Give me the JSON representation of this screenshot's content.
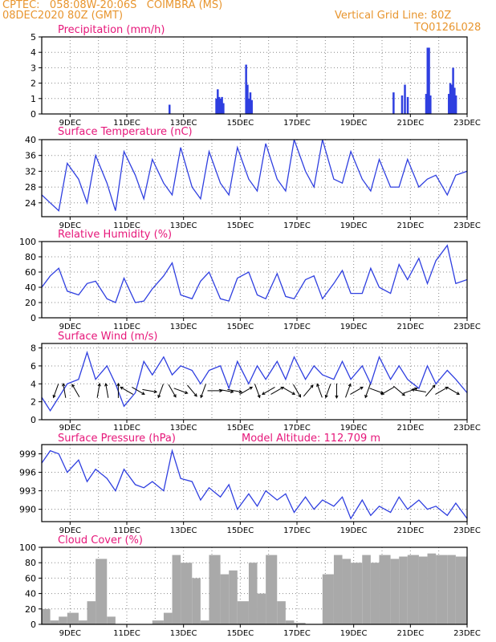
{
  "header": {
    "line1_left": "CPTEC:   058:08W-20:06S   COIMBRA (MS)",
    "line2_left": "08DEC2020 80Z (GMT)",
    "line2_right": "Vertical Grid Line: 80Z",
    "line3_right": "TQ0126L028"
  },
  "colors": {
    "header": "#e8952e",
    "panel_title": "#e6177a",
    "series_line": "#2f3fe0",
    "cloud_fill": "#a9a9a9"
  },
  "x_axis": {
    "ticks": [
      "9DEC",
      "11DEC",
      "13DEC",
      "15DEC",
      "17DEC",
      "19DEC",
      "21DEC",
      "23DEC"
    ],
    "range_days": [
      8.0,
      23.0
    ]
  },
  "chart_data": [
    {
      "type": "bar",
      "title": "Precipitation (mm/h)",
      "ylim": [
        0,
        5
      ],
      "yticks": [
        0,
        1,
        2,
        3,
        4,
        5
      ],
      "x": [
        12.5,
        14.15,
        14.2,
        14.25,
        14.3,
        14.35,
        14.4,
        15.2,
        15.25,
        15.3,
        15.35,
        15.4,
        20.4,
        20.7,
        20.8,
        20.9,
        21.55,
        21.6,
        21.65,
        21.7,
        22.35,
        22.4,
        22.45,
        22.5,
        22.55,
        22.6
      ],
      "values": [
        0.6,
        1.0,
        1.6,
        1.1,
        1.0,
        1.1,
        0.7,
        3.2,
        1.9,
        1.0,
        1.4,
        0.9,
        1.4,
        1.2,
        1.9,
        1.1,
        1.3,
        4.3,
        4.3,
        1.2,
        1.3,
        2.0,
        1.9,
        3.0,
        1.7,
        1.2
      ]
    },
    {
      "type": "line",
      "title": "Surface Temperature (nC)",
      "ylim": [
        20.5,
        40
      ],
      "yticks": [
        24,
        28,
        32,
        36,
        40
      ],
      "x": [
        8.0,
        8.3,
        8.6,
        8.9,
        9.3,
        9.6,
        9.9,
        10.3,
        10.6,
        10.9,
        11.3,
        11.6,
        11.9,
        12.3,
        12.6,
        12.9,
        13.3,
        13.6,
        13.9,
        14.3,
        14.6,
        14.9,
        15.3,
        15.6,
        15.9,
        16.3,
        16.6,
        16.9,
        17.3,
        17.6,
        17.9,
        18.3,
        18.6,
        18.9,
        19.3,
        19.6,
        19.9,
        20.3,
        20.6,
        20.9,
        21.3,
        21.6,
        21.9,
        22.3,
        22.6,
        23.0
      ],
      "values": [
        26,
        24,
        22,
        34,
        30,
        24,
        36,
        29,
        22,
        37,
        31,
        25,
        35,
        29,
        26,
        38,
        28,
        25,
        37,
        29,
        26,
        38,
        30,
        27,
        39,
        30,
        27,
        40,
        32,
        28,
        40,
        30,
        29,
        37,
        30,
        27,
        35,
        28,
        28,
        35,
        28,
        30,
        31,
        26,
        31,
        32
      ]
    },
    {
      "type": "line",
      "title": "Relative Humidity (%)",
      "ylim": [
        0,
        100
      ],
      "yticks": [
        0,
        20,
        40,
        60,
        80,
        100
      ],
      "x": [
        8.0,
        8.3,
        8.6,
        8.9,
        9.3,
        9.6,
        9.9,
        10.3,
        10.6,
        10.9,
        11.3,
        11.6,
        11.9,
        12.3,
        12.6,
        12.9,
        13.3,
        13.6,
        13.9,
        14.3,
        14.6,
        14.9,
        15.3,
        15.6,
        15.9,
        16.3,
        16.6,
        16.9,
        17.3,
        17.6,
        17.9,
        18.3,
        18.6,
        18.9,
        19.3,
        19.6,
        19.9,
        20.3,
        20.6,
        20.9,
        21.3,
        21.6,
        21.9,
        22.3,
        22.6,
        23.0
      ],
      "values": [
        40,
        55,
        65,
        35,
        30,
        45,
        48,
        25,
        20,
        52,
        20,
        22,
        38,
        55,
        72,
        30,
        25,
        48,
        60,
        25,
        22,
        52,
        60,
        30,
        25,
        58,
        28,
        25,
        50,
        55,
        25,
        45,
        62,
        32,
        32,
        65,
        40,
        32,
        70,
        50,
        78,
        45,
        75,
        95,
        45,
        50
      ]
    },
    {
      "type": "line",
      "title": "Surface Wind (m/s)",
      "ylim": [
        0,
        8.5
      ],
      "yticks": [
        0,
        2,
        4,
        6,
        8
      ],
      "x": [
        8.0,
        8.3,
        8.6,
        8.9,
        9.3,
        9.6,
        9.9,
        10.3,
        10.6,
        10.9,
        11.3,
        11.6,
        11.9,
        12.3,
        12.6,
        12.9,
        13.3,
        13.6,
        13.9,
        14.3,
        14.6,
        14.9,
        15.3,
        15.6,
        15.9,
        16.3,
        16.6,
        16.9,
        17.3,
        17.6,
        17.9,
        18.3,
        18.6,
        18.9,
        19.3,
        19.6,
        19.9,
        20.3,
        20.6,
        20.9,
        21.3,
        21.6,
        21.9,
        22.3,
        22.6,
        23.0
      ],
      "values": [
        2.5,
        1.0,
        2.5,
        4.0,
        4.5,
        7.5,
        4.5,
        6.0,
        4.0,
        1.5,
        3.0,
        6.5,
        5.0,
        7.0,
        5.0,
        6.0,
        5.5,
        4.0,
        5.5,
        6.0,
        3.5,
        6.5,
        4.0,
        6.0,
        4.5,
        6.5,
        4.5,
        7.0,
        4.5,
        6.0,
        5.0,
        4.5,
        6.5,
        4.5,
        6.0,
        4.0,
        7.0,
        4.5,
        6.0,
        4.5,
        3.5,
        6.0,
        4.0,
        5.5,
        4.5,
        3.0
      ],
      "vectors_dir_deg": [
        200,
        350,
        330,
        10,
        350,
        0,
        300,
        120,
        100,
        200,
        150,
        110,
        140,
        200,
        90,
        100,
        100,
        60,
        160,
        240,
        60,
        120,
        150,
        40,
        340,
        200,
        180,
        20,
        60,
        200,
        110,
        240,
        130,
        70,
        280,
        40,
        60,
        120
      ],
      "vectors_x": [
        8.5,
        8.8,
        9.2,
        10.0,
        10.3,
        10.7,
        11.0,
        11.4,
        11.8,
        12.2,
        12.6,
        12.9,
        13.3,
        13.7,
        14.1,
        14.5,
        14.8,
        15.2,
        15.6,
        16.0,
        16.3,
        16.7,
        17.0,
        17.4,
        17.8,
        18.1,
        18.4,
        18.8,
        19.1,
        19.5,
        19.8,
        20.2,
        20.6,
        21.0,
        21.3,
        21.7,
        22.1,
        22.5
      ]
    },
    {
      "type": "line",
      "title": "Surface Pressure (hPa)",
      "annotation": "Model Altitude: 112.709 m",
      "ylim": [
        988,
        1000.5
      ],
      "yticks": [
        990,
        993,
        996,
        999
      ],
      "x": [
        8.0,
        8.3,
        8.6,
        8.9,
        9.3,
        9.6,
        9.9,
        10.3,
        10.6,
        10.9,
        11.3,
        11.6,
        11.9,
        12.3,
        12.6,
        12.9,
        13.3,
        13.6,
        13.9,
        14.3,
        14.6,
        14.9,
        15.3,
        15.6,
        15.9,
        16.3,
        16.6,
        16.9,
        17.3,
        17.6,
        17.9,
        18.3,
        18.6,
        18.9,
        19.3,
        19.6,
        19.9,
        20.3,
        20.6,
        20.9,
        21.3,
        21.6,
        21.9,
        22.3,
        22.6,
        23.0
      ],
      "values": [
        997.5,
        999.5,
        999.0,
        996.0,
        998.0,
        994.5,
        996.5,
        995.0,
        993.0,
        996.5,
        994.0,
        993.5,
        994.5,
        993.0,
        999.5,
        995.0,
        994.5,
        991.5,
        993.5,
        992.0,
        994.0,
        990.0,
        992.5,
        990.5,
        993.0,
        991.5,
        992.5,
        989.5,
        992.0,
        990.0,
        991.5,
        990.5,
        992.0,
        988.5,
        991.5,
        989.0,
        990.5,
        989.5,
        992.0,
        990.0,
        991.5,
        990.0,
        990.5,
        989.0,
        991.0,
        988.5
      ]
    },
    {
      "type": "area",
      "title": "Cloud Cover (%)",
      "ylim": [
        0,
        100
      ],
      "yticks": [
        0,
        20,
        40,
        60,
        80,
        100
      ],
      "x": [
        8.0,
        8.3,
        8.6,
        8.9,
        9.3,
        9.6,
        9.9,
        10.3,
        10.6,
        10.9,
        11.3,
        11.6,
        11.9,
        12.3,
        12.6,
        12.9,
        13.3,
        13.6,
        13.9,
        14.3,
        14.6,
        14.9,
        15.3,
        15.6,
        15.9,
        16.3,
        16.6,
        16.9,
        17.3,
        17.6,
        17.9,
        18.3,
        18.6,
        18.9,
        19.3,
        19.6,
        19.9,
        20.3,
        20.6,
        20.9,
        21.3,
        21.6,
        21.9,
        22.3,
        22.6,
        23.0
      ],
      "values": [
        20,
        5,
        10,
        15,
        5,
        30,
        85,
        10,
        0,
        0,
        0,
        0,
        5,
        15,
        90,
        80,
        60,
        5,
        90,
        65,
        70,
        30,
        80,
        40,
        90,
        30,
        5,
        2,
        0,
        0,
        65,
        90,
        85,
        80,
        90,
        80,
        90,
        85,
        88,
        90,
        88,
        92,
        90,
        90,
        88,
        92
      ]
    }
  ]
}
